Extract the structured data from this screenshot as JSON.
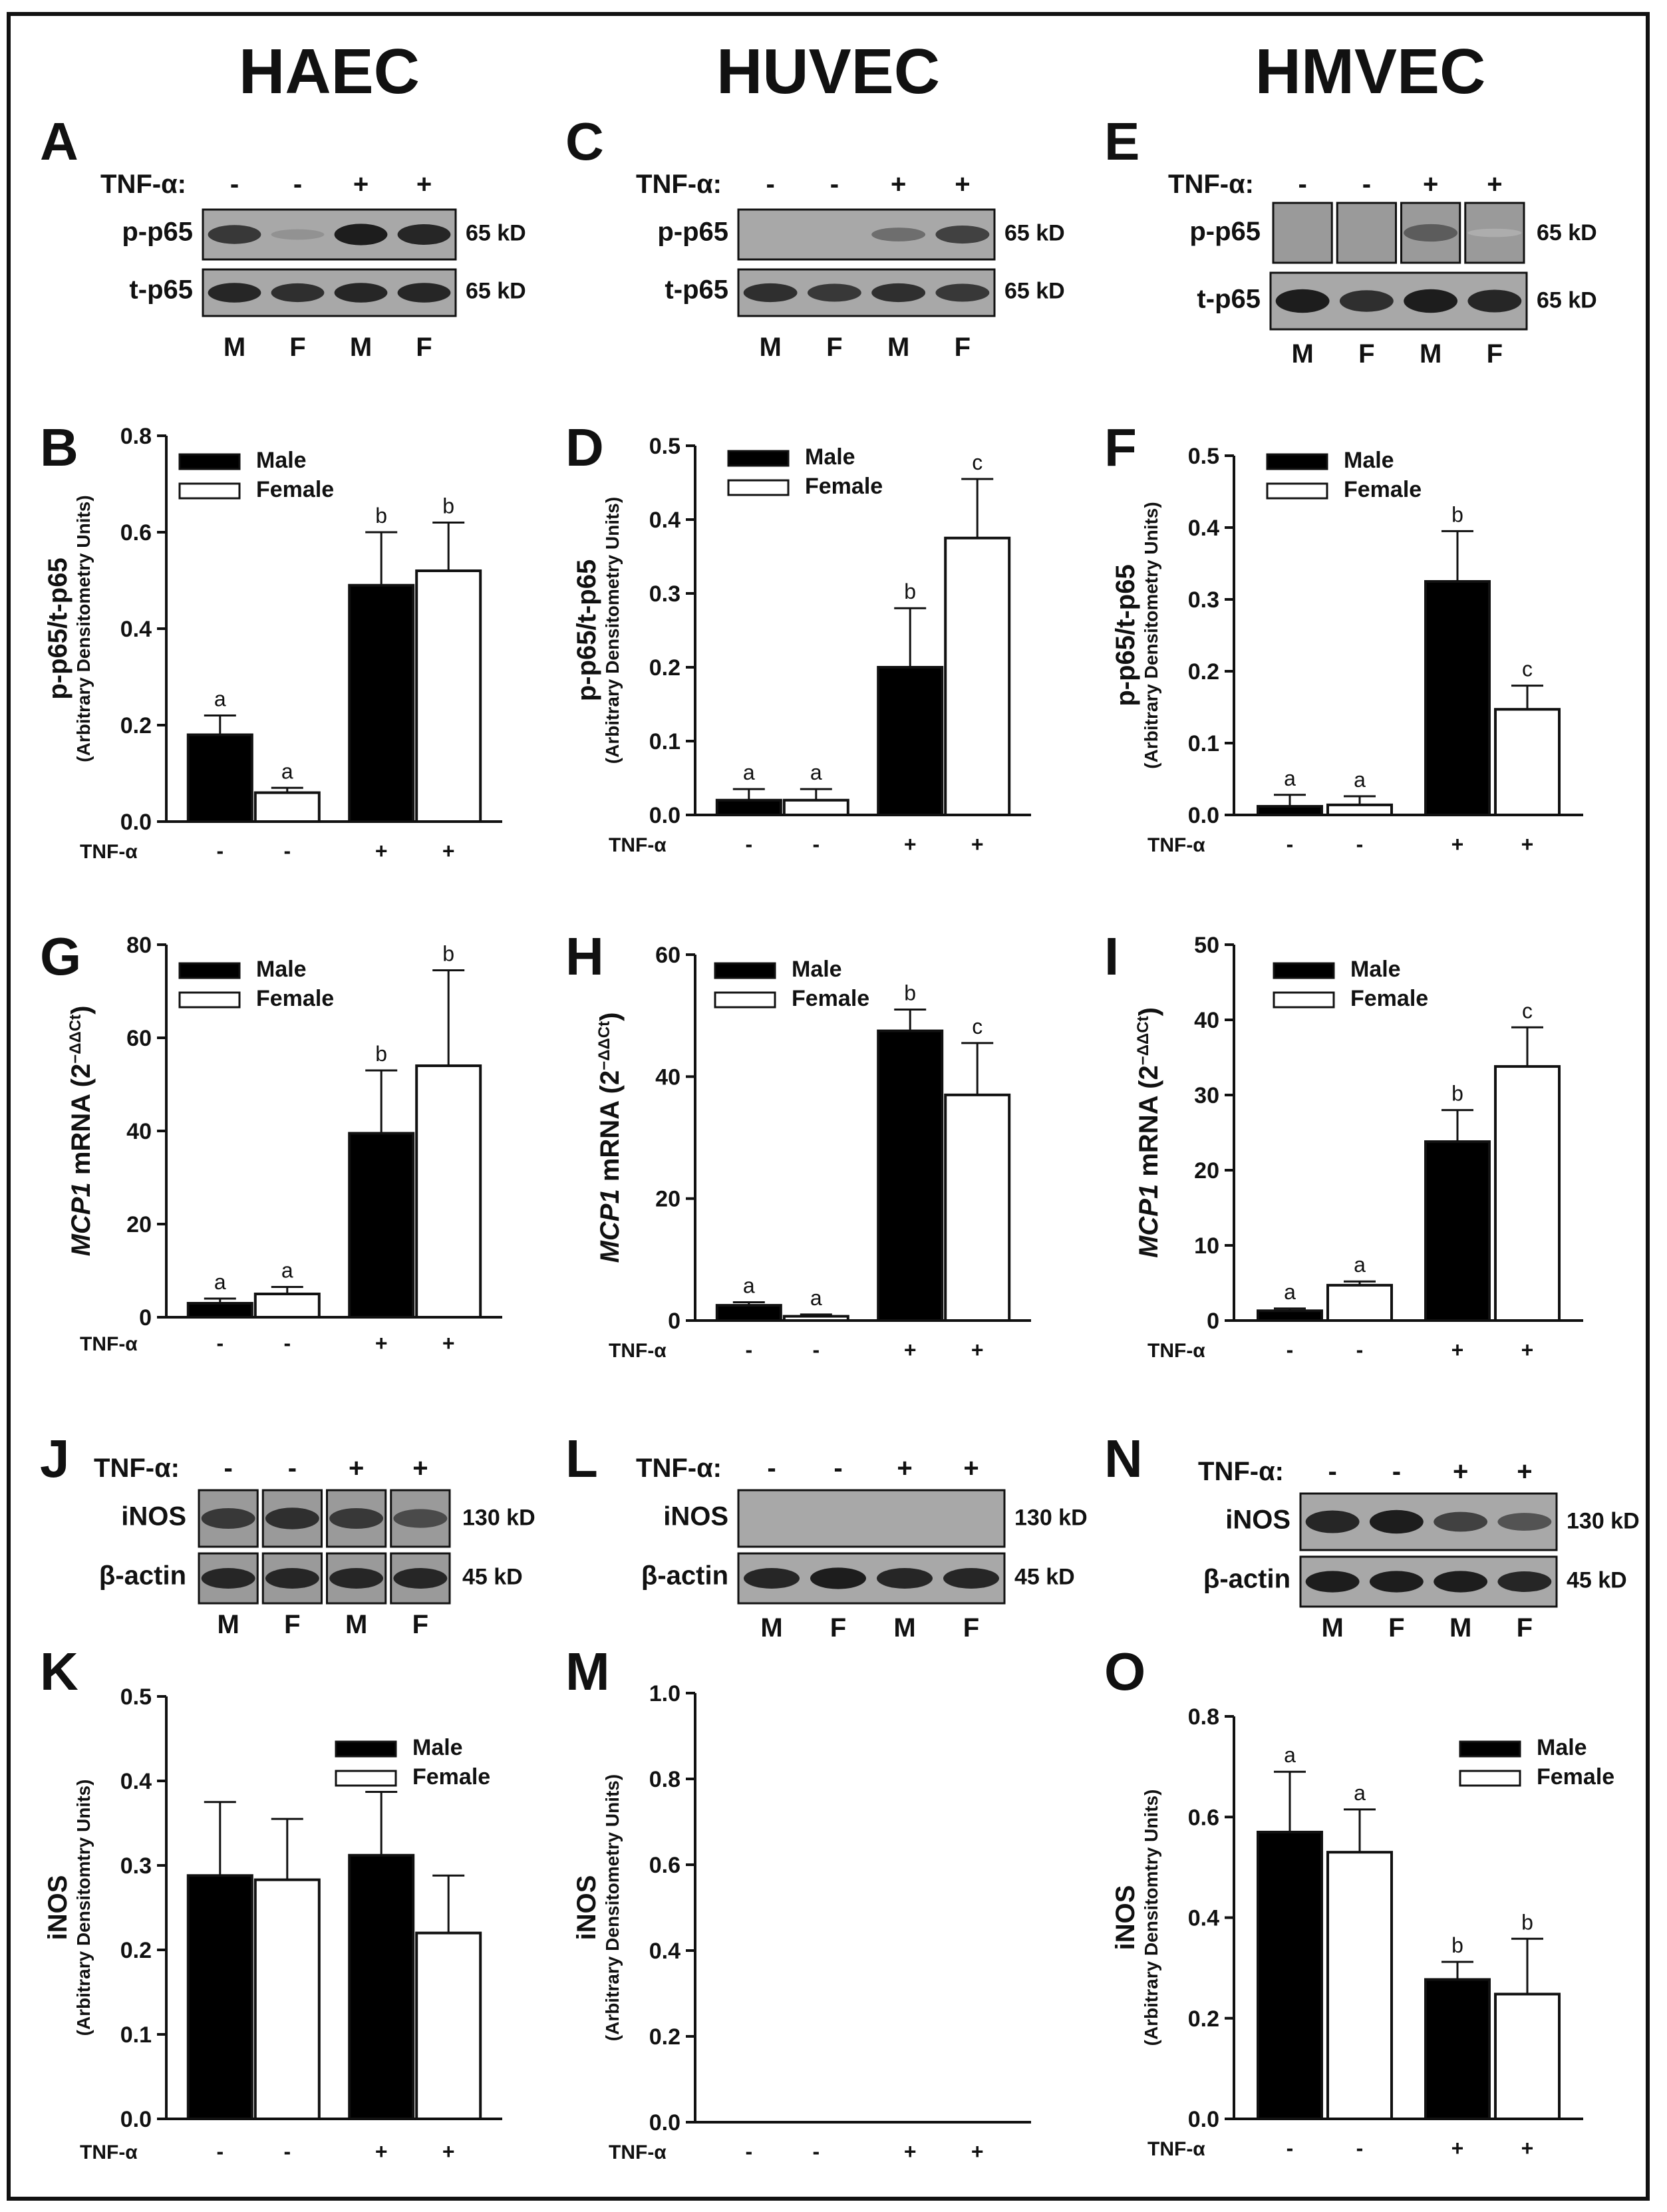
{
  "columns": [
    "HAEC",
    "HUVEC",
    "HMVEC"
  ],
  "legend": {
    "male": "Male",
    "female": "Female"
  },
  "treatment_label": "TNF-α",
  "blot_treatment_label": "TNF-α:",
  "sign_minus": "-",
  "sign_plus": "+",
  "lanes": [
    "M",
    "F",
    "M",
    "F"
  ],
  "blots": [
    {
      "panel": "A",
      "cell": "HAEC",
      "rows": [
        {
          "label": "p-p65",
          "kd": "65 kD",
          "intensity": [
            0.8,
            0.3,
            0.95,
            0.9
          ]
        },
        {
          "label": "t-p65",
          "kd": "65 kD",
          "intensity": [
            0.9,
            0.85,
            0.9,
            0.9
          ]
        }
      ]
    },
    {
      "panel": "C",
      "cell": "HUVEC",
      "rows": [
        {
          "label": "p-p65",
          "kd": "65 kD",
          "intensity": [
            0.0,
            0.0,
            0.5,
            0.75
          ]
        },
        {
          "label": "t-p65",
          "kd": "65 kD",
          "intensity": [
            0.85,
            0.8,
            0.85,
            0.8
          ]
        }
      ]
    },
    {
      "panel": "E",
      "cell": "HMVEC",
      "rows": [
        {
          "label": "p-p65",
          "kd": "65 kD",
          "intensity": [
            0.0,
            0.0,
            0.6,
            0.15
          ]
        },
        {
          "label": "t-p65",
          "kd": "65 kD",
          "intensity": [
            0.95,
            0.85,
            0.95,
            0.9
          ]
        }
      ]
    },
    {
      "panel": "J",
      "cell": "HAEC",
      "rows": [
        {
          "label": "iNOS",
          "kd": "130 kD",
          "intensity": [
            0.8,
            0.85,
            0.8,
            0.7
          ]
        },
        {
          "label": "β-actin",
          "kd": "45 kD",
          "intensity": [
            0.9,
            0.9,
            0.9,
            0.9
          ]
        }
      ]
    },
    {
      "panel": "L",
      "cell": "HUVEC",
      "rows": [
        {
          "label": "iNOS",
          "kd": "130 kD",
          "intensity": [
            0.0,
            0.0,
            0.0,
            0.0
          ]
        },
        {
          "label": "β-actin",
          "kd": "45 kD",
          "intensity": [
            0.9,
            0.95,
            0.9,
            0.9
          ]
        }
      ]
    },
    {
      "panel": "N",
      "cell": "HMVEC",
      "rows": [
        {
          "label": "iNOS",
          "kd": "130 kD",
          "intensity": [
            0.9,
            0.95,
            0.75,
            0.65
          ]
        },
        {
          "label": "β-actin",
          "kd": "45 kD",
          "intensity": [
            0.95,
            0.95,
            0.95,
            0.9
          ]
        }
      ]
    }
  ],
  "chart_data": [
    {
      "panel": "B",
      "type": "bar",
      "ylabel": "p-p65/t-p65",
      "ylabel_sub": "(Arbitrary Densitometry Units)",
      "ylim": [
        0,
        0.8
      ],
      "ticks": [
        "0.0",
        "0.2",
        "0.4",
        "0.6",
        "0.8"
      ],
      "tnf": [
        "-",
        "-",
        "+",
        "+"
      ],
      "sex": [
        "Male",
        "Female",
        "Male",
        "Female"
      ],
      "values": [
        0.18,
        0.06,
        0.49,
        0.52
      ],
      "errors": [
        0.04,
        0.01,
        0.11,
        0.1
      ],
      "letters": [
        "a",
        "a",
        "b",
        "b"
      ]
    },
    {
      "panel": "D",
      "type": "bar",
      "ylabel": "p-p65/t-p65",
      "ylabel_sub": "(Arbitrary Densitometry Units)",
      "ylim": [
        0,
        0.5
      ],
      "ticks": [
        "0.0",
        "0.1",
        "0.2",
        "0.3",
        "0.4",
        "0.5"
      ],
      "tnf": [
        "-",
        "-",
        "+",
        "+"
      ],
      "sex": [
        "Male",
        "Female",
        "Male",
        "Female"
      ],
      "values": [
        0.02,
        0.02,
        0.2,
        0.375
      ],
      "errors": [
        0.015,
        0.015,
        0.08,
        0.08
      ],
      "letters": [
        "a",
        "a",
        "b",
        "c"
      ]
    },
    {
      "panel": "F",
      "type": "bar",
      "ylabel": "p-p65/t-p65",
      "ylabel_sub": "(Arbitrary Densitometry Units)",
      "ylim": [
        0,
        0.5
      ],
      "ticks": [
        "0.0",
        "0.1",
        "0.2",
        "0.3",
        "0.4",
        "0.5"
      ],
      "tnf": [
        "-",
        "-",
        "+",
        "+"
      ],
      "sex": [
        "Male",
        "Female",
        "Male",
        "Female"
      ],
      "values": [
        0.012,
        0.014,
        0.325,
        0.147
      ],
      "errors": [
        0.016,
        0.012,
        0.07,
        0.033
      ],
      "letters": [
        "a",
        "a",
        "b",
        "c"
      ]
    },
    {
      "panel": "G",
      "type": "bar",
      "ylabel_italic": "MCP1",
      "ylabel": " mRNA (2",
      "ylabel_sup": "−ΔΔCt",
      "ylabel_end": ")",
      "ylim": [
        0,
        80
      ],
      "ticks": [
        "0",
        "20",
        "40",
        "60",
        "80"
      ],
      "tnf": [
        "-",
        "-",
        "+",
        "+"
      ],
      "sex": [
        "Male",
        "Female",
        "Male",
        "Female"
      ],
      "values": [
        3,
        5,
        39.5,
        54
      ],
      "errors": [
        1,
        1.5,
        13.5,
        20.5
      ],
      "letters": [
        "a",
        "a",
        "b",
        "b"
      ]
    },
    {
      "panel": "H",
      "type": "bar",
      "ylabel_italic": "MCP1",
      "ylabel": " mRNA (2",
      "ylabel_sup": "−ΔΔCt",
      "ylabel_end": ")",
      "ylim": [
        0,
        60
      ],
      "ticks": [
        "0",
        "20",
        "40",
        "60"
      ],
      "tnf": [
        "-",
        "-",
        "+",
        "+"
      ],
      "sex": [
        "Male",
        "Female",
        "Male",
        "Female"
      ],
      "values": [
        2.5,
        0.7,
        47.5,
        37
      ],
      "errors": [
        0.5,
        0.3,
        3.5,
        8.5
      ],
      "letters": [
        "a",
        "a",
        "b",
        "c"
      ]
    },
    {
      "panel": "I",
      "type": "bar",
      "ylabel_italic": "MCP1",
      "ylabel": " mRNA (2",
      "ylabel_sup": "−ΔΔCt",
      "ylabel_end": ")",
      "ylim": [
        0,
        50
      ],
      "ticks": [
        "0",
        "10",
        "20",
        "30",
        "40",
        "50"
      ],
      "tnf": [
        "-",
        "-",
        "+",
        "+"
      ],
      "sex": [
        "Male",
        "Female",
        "Male",
        "Female"
      ],
      "values": [
        1.3,
        4.7,
        23.8,
        33.8
      ],
      "errors": [
        0.3,
        0.5,
        4.2,
        5.2
      ],
      "letters": [
        "a",
        "a",
        "b",
        "c"
      ]
    },
    {
      "panel": "K",
      "type": "bar",
      "ylabel": "iNOS",
      "ylabel_sub": "(Arbitrary Densitomtry Units)",
      "ylim": [
        0,
        0.5
      ],
      "ticks": [
        "0.0",
        "0.1",
        "0.2",
        "0.3",
        "0.4",
        "0.5"
      ],
      "tnf": [
        "-",
        "-",
        "+",
        "+"
      ],
      "sex": [
        "Male",
        "Female",
        "Male",
        "Female"
      ],
      "values": [
        0.288,
        0.283,
        0.312,
        0.22
      ],
      "errors": [
        0.087,
        0.072,
        0.075,
        0.068
      ],
      "letters": [
        "",
        "",
        "",
        ""
      ]
    },
    {
      "panel": "M",
      "type": "bar",
      "ylabel": "iNOS",
      "ylabel_sub": "(Arbitrary Densitometry Units)",
      "ylim": [
        0,
        1.0
      ],
      "ticks": [
        "0.0",
        "0.2",
        "0.4",
        "0.6",
        "0.8",
        "1.0"
      ],
      "tnf": [
        "-",
        "-",
        "+",
        "+"
      ],
      "sex": [
        "Male",
        "Female",
        "Male",
        "Female"
      ],
      "values": [
        0,
        0,
        0,
        0
      ],
      "errors": [
        0,
        0,
        0,
        0
      ],
      "letters": [
        "",
        "",
        "",
        ""
      ]
    },
    {
      "panel": "O",
      "type": "bar",
      "ylabel": "iNOS",
      "ylabel_sub": "(Arbitrary Densitomtry Units)",
      "ylim": [
        0,
        0.8
      ],
      "ticks": [
        "0.0",
        "0.2",
        "0.4",
        "0.6",
        "0.8"
      ],
      "tnf": [
        "-",
        "-",
        "+",
        "+"
      ],
      "sex": [
        "Male",
        "Female",
        "Male",
        "Female"
      ],
      "values": [
        0.57,
        0.53,
        0.277,
        0.248
      ],
      "errors": [
        0.12,
        0.085,
        0.035,
        0.11
      ],
      "letters": [
        "a",
        "a",
        "b",
        "b"
      ]
    }
  ]
}
